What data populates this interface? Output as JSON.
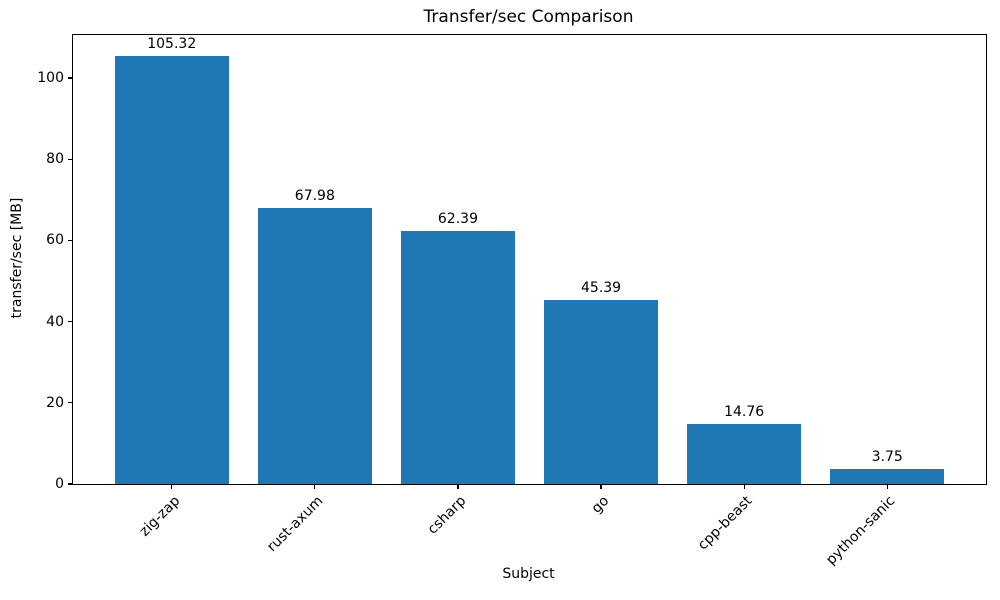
{
  "window": {
    "background": "#ffffff"
  },
  "chart_data": {
    "type": "bar",
    "title": "Transfer/sec Comparison",
    "xlabel": "Subject",
    "ylabel": "transfer/sec [MB]",
    "categories": [
      "zig-zap",
      "rust-axum",
      "csharp",
      "go",
      "cpp-beast",
      "python-sanic"
    ],
    "values": [
      105.32,
      67.98,
      62.39,
      45.39,
      14.76,
      3.75
    ],
    "value_labels": [
      "105.32",
      "67.98",
      "62.39",
      "45.39",
      "14.76",
      "3.75"
    ],
    "yticks": [
      0,
      20,
      40,
      60,
      80,
      100
    ],
    "ytick_labels": [
      "0",
      "20",
      "40",
      "60",
      "80",
      "100"
    ],
    "ylim": [
      0,
      110.59
    ],
    "xlim_units": [
      -0.69,
      5.69
    ],
    "bar_width_units": 0.8,
    "bar_color": "#1f77b4",
    "spine_color": "#000000",
    "text_color": "#000000",
    "grid": false,
    "legend_position": "none",
    "xtick_label_rotation_deg": 45
  }
}
